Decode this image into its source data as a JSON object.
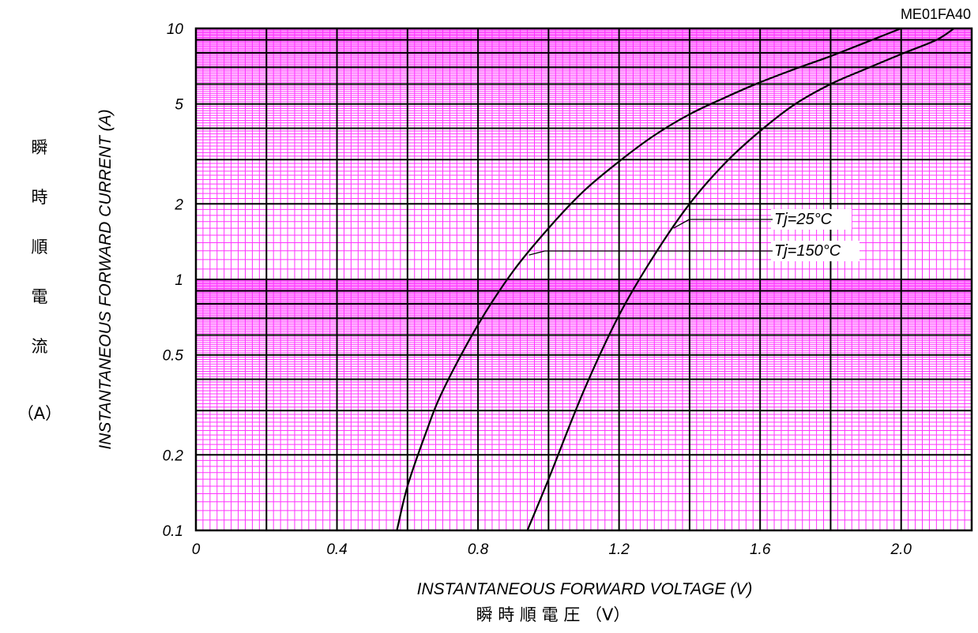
{
  "figure_code": "ME01FA40",
  "colors": {
    "grid_minor": "#ff33ff",
    "grid_major": "#000000",
    "curve": "#000000",
    "background": "#ffffff"
  },
  "chart_data": {
    "type": "line",
    "title": "",
    "xlabel": "INSTANTANEOUS FORWARD VOLTAGE (V)",
    "xlabel_jp": "瞬 時 順 電 圧 （V）",
    "ylabel": "INSTANTANEOUS FORWARD CURRENT (A)",
    "ylabel_jp": [
      "瞬",
      "時",
      "順",
      "電",
      "流",
      "（A）"
    ],
    "x_scale": "linear",
    "y_scale": "log",
    "xlim": [
      0,
      2.2
    ],
    "ylim": [
      0.1,
      10
    ],
    "x_ticks": [
      {
        "value": 0,
        "label": "0"
      },
      {
        "value": 0.4,
        "label": "0.4"
      },
      {
        "value": 0.8,
        "label": "0.8"
      },
      {
        "value": 1.2,
        "label": "1.2"
      },
      {
        "value": 1.6,
        "label": "1.6"
      },
      {
        "value": 2.0,
        "label": "2.0"
      }
    ],
    "y_ticks": [
      {
        "value": 0.1,
        "label": "0.1"
      },
      {
        "value": 0.2,
        "label": "0.2"
      },
      {
        "value": 0.5,
        "label": "0.5"
      },
      {
        "value": 1,
        "label": "1"
      },
      {
        "value": 2,
        "label": "2"
      },
      {
        "value": 5,
        "label": "5"
      },
      {
        "value": 10,
        "label": "10"
      }
    ],
    "grid": true,
    "series": [
      {
        "name": "Tj=25°C",
        "x": [
          0.94,
          1.0,
          1.1,
          1.2,
          1.3,
          1.4,
          1.5,
          1.6,
          1.7,
          1.8,
          1.9,
          2.0,
          2.1,
          2.15
        ],
        "y": [
          0.1,
          0.16,
          0.36,
          0.72,
          1.25,
          2.0,
          2.9,
          3.9,
          5.0,
          6.0,
          6.9,
          7.9,
          9.0,
          10.0
        ]
      },
      {
        "name": "Tj=150°C",
        "x": [
          0.57,
          0.6,
          0.65,
          0.7,
          0.8,
          0.9,
          1.0,
          1.1,
          1.2,
          1.3,
          1.4,
          1.5,
          1.6,
          1.7,
          1.8,
          1.9,
          2.0
        ],
        "y": [
          0.1,
          0.15,
          0.24,
          0.36,
          0.66,
          1.08,
          1.6,
          2.25,
          2.95,
          3.75,
          4.55,
          5.3,
          6.1,
          6.9,
          7.75,
          8.8,
          10.0
        ]
      }
    ],
    "annotations": [
      {
        "text": "Tj=25°C",
        "series": "Tj=25°C",
        "point_x": 1.35,
        "point_y": 1.6
      },
      {
        "text": "Tj=150°C",
        "series": "Tj=150°C",
        "point_x": 0.94,
        "point_y": 1.25
      }
    ]
  }
}
